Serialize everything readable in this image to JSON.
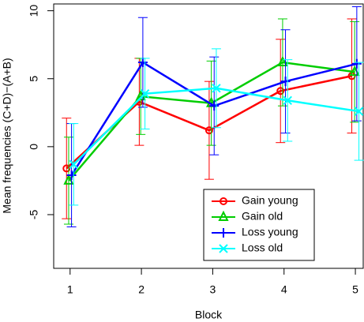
{
  "chart_data": {
    "type": "line",
    "xlabel": "Block",
    "ylabel": "Mean frequencies (C+D)−(A+B)",
    "xlim": [
      0.77,
      5.11
    ],
    "ylim": [
      -8.95,
      10.5
    ],
    "xticks": [
      1,
      2,
      3,
      4,
      5
    ],
    "yticks": [
      -5,
      0,
      5,
      10
    ],
    "legend": "bottom-right",
    "series": [
      {
        "name": "Gain young",
        "color": "#ff0000",
        "marker": "circle",
        "x": [
          0.95,
          1.97,
          2.95,
          3.95,
          4.95
        ],
        "values": [
          -1.6,
          3.3,
          1.2,
          4.1,
          5.2
        ],
        "errors": [
          3.7,
          3.2,
          3.6,
          3.8,
          4.2
        ]
      },
      {
        "name": "Gain old",
        "color": "#00cd00",
        "marker": "triangle",
        "x": [
          0.98,
          1.99,
          2.98,
          3.98,
          4.99
        ],
        "values": [
          -2.5,
          3.7,
          3.2,
          6.2,
          5.5
        ],
        "errors": [
          3.2,
          2.8,
          3.1,
          3.2,
          3.7
        ]
      },
      {
        "name": "Loss young",
        "color": "#0000ff",
        "marker": "plus",
        "x": [
          1.02,
          2.02,
          3.02,
          4.02,
          5.02
        ],
        "values": [
          -2.1,
          6.2,
          3.0,
          4.8,
          6.1
        ],
        "errors": [
          3.8,
          3.3,
          3.6,
          3.8,
          4.2
        ]
      },
      {
        "name": "Loss old",
        "color": "#00ffff",
        "marker": "cross",
        "x": [
          1.05,
          2.05,
          3.05,
          4.05,
          5.05
        ],
        "values": [
          -1.3,
          3.9,
          4.3,
          3.4,
          2.6
        ],
        "errors": [
          3.0,
          2.6,
          2.9,
          3.0,
          3.6
        ]
      }
    ]
  }
}
